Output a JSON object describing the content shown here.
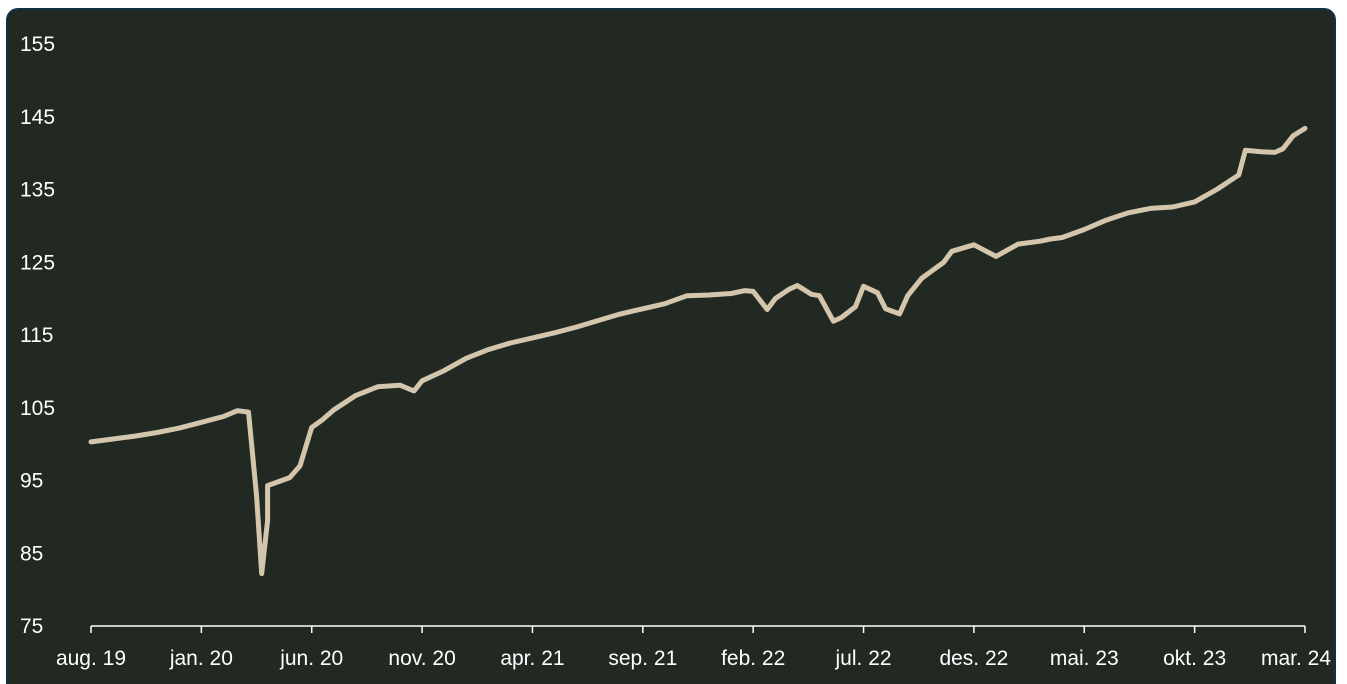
{
  "colors": {
    "background": "#222822",
    "line": "#d3c6ad",
    "text": "#ffffff",
    "frame": "#113046"
  },
  "chart_data": {
    "type": "line",
    "title": "",
    "xlabel": "",
    "ylabel": "",
    "ylim": [
      75,
      155
    ],
    "yticks": [
      75,
      85,
      95,
      105,
      115,
      125,
      135,
      145,
      155
    ],
    "xlim": [
      "2019-08",
      "2024-03"
    ],
    "xticks": [
      "aug. 19",
      "jan. 20",
      "jun. 20",
      "nov. 20",
      "apr. 21",
      "sep. 21",
      "feb. 22",
      "jul. 22",
      "des. 22",
      "mai. 23",
      "okt. 23",
      "mar. 24"
    ],
    "grid": false,
    "legend": "none",
    "series": [
      {
        "x": [
          "2019-08",
          "2019-09",
          "2019-10",
          "2019-11",
          "2019-12",
          "2020-01",
          "2020-02",
          "2020-02-20",
          "2020-03-05",
          "2020-03-16",
          "2020-03-23",
          "2020-03-31",
          "2020-04",
          "2020-05",
          "2020-05-15",
          "2020-06",
          "2020-06-15",
          "2020-07",
          "2020-08",
          "2020-09",
          "2020-10",
          "2020-10-20",
          "2020-11",
          "2020-12",
          "2021-01",
          "2021-02",
          "2021-03",
          "2021-04",
          "2021-05",
          "2021-06",
          "2021-07",
          "2021-08",
          "2021-09",
          "2021-10",
          "2021-11",
          "2021-12",
          "2022-01",
          "2022-01-20",
          "2022-02",
          "2022-02-20",
          "2022-03",
          "2022-03-20",
          "2022-04",
          "2022-04-20",
          "2022-05",
          "2022-05-20",
          "2022-06",
          "2022-06-20",
          "2022-07",
          "2022-07-20",
          "2022-08",
          "2022-08-20",
          "2022-09",
          "2022-09-20",
          "2022-10",
          "2022-10-20",
          "2022-11",
          "2022-12",
          "2023-01",
          "2023-02",
          "2023-03",
          "2023-03-15",
          "2023-04",
          "2023-05",
          "2023-06",
          "2023-07",
          "2023-08",
          "2023-09",
          "2023-10",
          "2023-11",
          "2023-12",
          "2023-12-10",
          "2024-01",
          "2024-01-20",
          "2024-02",
          "2024-02-15",
          "2024-03"
        ],
        "y": [
          100.3,
          100.7,
          101.1,
          101.6,
          102.2,
          103.0,
          103.8,
          104.6,
          104.4,
          93.0,
          82.2,
          89.5,
          94.3,
          95.4,
          97.0,
          102.3,
          103.3,
          104.7,
          106.7,
          107.9,
          108.1,
          107.3,
          108.7,
          110.1,
          111.8,
          113.0,
          113.9,
          114.6,
          115.3,
          116.1,
          117.0,
          117.9,
          118.6,
          119.3,
          120.4,
          120.5,
          120.7,
          121.1,
          121.0,
          118.5,
          120.0,
          121.3,
          121.8,
          120.6,
          120.4,
          116.9,
          117.4,
          118.9,
          121.7,
          120.8,
          118.6,
          117.9,
          120.4,
          122.8,
          123.6,
          125.0,
          126.5,
          127.4,
          125.8,
          127.5,
          127.9,
          128.2,
          128.4,
          129.5,
          130.8,
          131.8,
          132.4,
          132.6,
          133.3,
          135.0,
          137.0,
          140.4,
          140.2,
          140.1,
          140.6,
          142.4,
          143.4
        ]
      }
    ]
  }
}
